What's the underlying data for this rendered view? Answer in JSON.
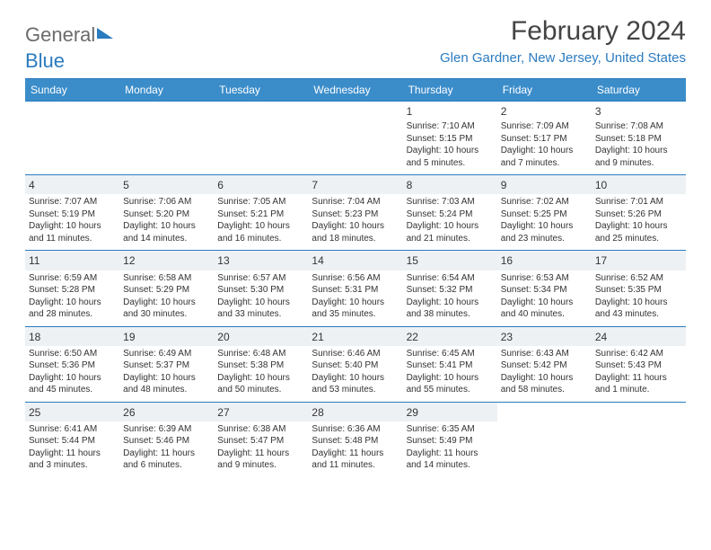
{
  "brand": {
    "part1": "General",
    "part2": "Blue"
  },
  "title": "February 2024",
  "location": "Glen Gardner, New Jersey, United States",
  "colors": {
    "header_bg": "#3b8dca",
    "accent": "#2b7bbf",
    "shaded_bg": "#eef1f4",
    "text": "#333333",
    "logo_gray": "#6b6b6b"
  },
  "day_headers": [
    "Sunday",
    "Monday",
    "Tuesday",
    "Wednesday",
    "Thursday",
    "Friday",
    "Saturday"
  ],
  "weeks": [
    [
      null,
      null,
      null,
      null,
      {
        "n": "1",
        "sr": "7:10 AM",
        "ss": "5:15 PM",
        "dl": "10 hours and 5 minutes."
      },
      {
        "n": "2",
        "sr": "7:09 AM",
        "ss": "5:17 PM",
        "dl": "10 hours and 7 minutes."
      },
      {
        "n": "3",
        "sr": "7:08 AM",
        "ss": "5:18 PM",
        "dl": "10 hours and 9 minutes."
      }
    ],
    [
      {
        "n": "4",
        "sr": "7:07 AM",
        "ss": "5:19 PM",
        "dl": "10 hours and 11 minutes."
      },
      {
        "n": "5",
        "sr": "7:06 AM",
        "ss": "5:20 PM",
        "dl": "10 hours and 14 minutes."
      },
      {
        "n": "6",
        "sr": "7:05 AM",
        "ss": "5:21 PM",
        "dl": "10 hours and 16 minutes."
      },
      {
        "n": "7",
        "sr": "7:04 AM",
        "ss": "5:23 PM",
        "dl": "10 hours and 18 minutes."
      },
      {
        "n": "8",
        "sr": "7:03 AM",
        "ss": "5:24 PM",
        "dl": "10 hours and 21 minutes."
      },
      {
        "n": "9",
        "sr": "7:02 AM",
        "ss": "5:25 PM",
        "dl": "10 hours and 23 minutes."
      },
      {
        "n": "10",
        "sr": "7:01 AM",
        "ss": "5:26 PM",
        "dl": "10 hours and 25 minutes."
      }
    ],
    [
      {
        "n": "11",
        "sr": "6:59 AM",
        "ss": "5:28 PM",
        "dl": "10 hours and 28 minutes."
      },
      {
        "n": "12",
        "sr": "6:58 AM",
        "ss": "5:29 PM",
        "dl": "10 hours and 30 minutes."
      },
      {
        "n": "13",
        "sr": "6:57 AM",
        "ss": "5:30 PM",
        "dl": "10 hours and 33 minutes."
      },
      {
        "n": "14",
        "sr": "6:56 AM",
        "ss": "5:31 PM",
        "dl": "10 hours and 35 minutes."
      },
      {
        "n": "15",
        "sr": "6:54 AM",
        "ss": "5:32 PM",
        "dl": "10 hours and 38 minutes."
      },
      {
        "n": "16",
        "sr": "6:53 AM",
        "ss": "5:34 PM",
        "dl": "10 hours and 40 minutes."
      },
      {
        "n": "17",
        "sr": "6:52 AM",
        "ss": "5:35 PM",
        "dl": "10 hours and 43 minutes."
      }
    ],
    [
      {
        "n": "18",
        "sr": "6:50 AM",
        "ss": "5:36 PM",
        "dl": "10 hours and 45 minutes."
      },
      {
        "n": "19",
        "sr": "6:49 AM",
        "ss": "5:37 PM",
        "dl": "10 hours and 48 minutes."
      },
      {
        "n": "20",
        "sr": "6:48 AM",
        "ss": "5:38 PM",
        "dl": "10 hours and 50 minutes."
      },
      {
        "n": "21",
        "sr": "6:46 AM",
        "ss": "5:40 PM",
        "dl": "10 hours and 53 minutes."
      },
      {
        "n": "22",
        "sr": "6:45 AM",
        "ss": "5:41 PM",
        "dl": "10 hours and 55 minutes."
      },
      {
        "n": "23",
        "sr": "6:43 AM",
        "ss": "5:42 PM",
        "dl": "10 hours and 58 minutes."
      },
      {
        "n": "24",
        "sr": "6:42 AM",
        "ss": "5:43 PM",
        "dl": "11 hours and 1 minute."
      }
    ],
    [
      {
        "n": "25",
        "sr": "6:41 AM",
        "ss": "5:44 PM",
        "dl": "11 hours and 3 minutes."
      },
      {
        "n": "26",
        "sr": "6:39 AM",
        "ss": "5:46 PM",
        "dl": "11 hours and 6 minutes."
      },
      {
        "n": "27",
        "sr": "6:38 AM",
        "ss": "5:47 PM",
        "dl": "11 hours and 9 minutes."
      },
      {
        "n": "28",
        "sr": "6:36 AM",
        "ss": "5:48 PM",
        "dl": "11 hours and 11 minutes."
      },
      {
        "n": "29",
        "sr": "6:35 AM",
        "ss": "5:49 PM",
        "dl": "11 hours and 14 minutes."
      },
      null,
      null
    ]
  ],
  "labels": {
    "sunrise": "Sunrise:",
    "sunset": "Sunset:",
    "daylight": "Daylight:"
  }
}
